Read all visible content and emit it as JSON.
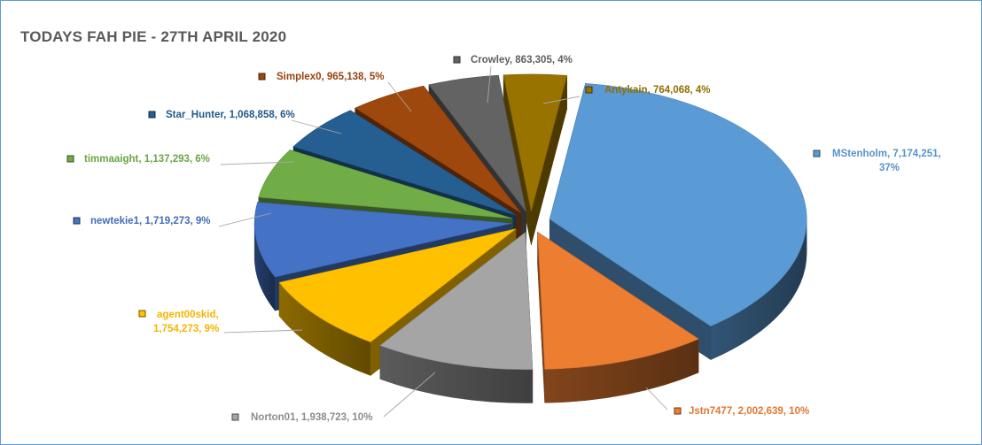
{
  "chart_data": {
    "type": "pie",
    "title": "TODAYS FAH PIE - 27TH APRIL 2020",
    "slices": [
      {
        "name": "MStenholm",
        "value": 7174251,
        "value_text": "7,174,251",
        "percent_text": "37%",
        "color": "#5b9bd5"
      },
      {
        "name": "Jstn7477",
        "value": 2002639,
        "value_text": "2,002,639",
        "percent_text": "10%",
        "color": "#ed7d31"
      },
      {
        "name": "Norton01",
        "value": 1938723,
        "value_text": "1,938,723",
        "percent_text": "10%",
        "color": "#a5a5a5"
      },
      {
        "name": "agent00skid",
        "value": 1754273,
        "value_text": "1,754,273",
        "percent_text": "9%",
        "color": "#ffc000"
      },
      {
        "name": "newtekie1",
        "value": 1719273,
        "value_text": "1,719,273",
        "percent_text": "9%",
        "color": "#4472c4"
      },
      {
        "name": "timmaaight",
        "value": 1137293,
        "value_text": "1,137,293",
        "percent_text": "6%",
        "color": "#70ad47"
      },
      {
        "name": "Star_Hunter",
        "value": 1068858,
        "value_text": "1,068,858",
        "percent_text": "6%",
        "color": "#255e91"
      },
      {
        "name": "Simplex0",
        "value": 965138,
        "value_text": "965,138",
        "percent_text": "5%",
        "color": "#9e480e"
      },
      {
        "name": "Crowley",
        "value": 863305,
        "value_text": "863,305",
        "percent_text": "4%",
        "color": "#636363"
      },
      {
        "name": "Antykain",
        "value": 764068,
        "value_text": "764,068",
        "percent_text": "4%",
        "color": "#997300"
      }
    ],
    "style": "exploded 3d pie"
  }
}
